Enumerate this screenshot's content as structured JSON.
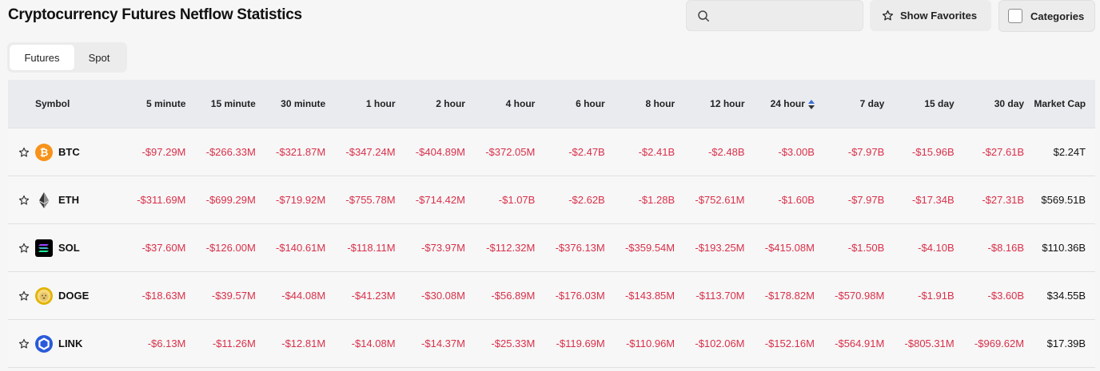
{
  "title": "Cryptocurrency Futures Netflow Statistics",
  "search": {
    "placeholder": "",
    "value": ""
  },
  "favorites_label": "Show Favorites",
  "categories_label": "Categories",
  "tabs": [
    {
      "label": "Futures",
      "active": true
    },
    {
      "label": "Spot",
      "active": false
    }
  ],
  "table": {
    "headers": [
      "Symbol",
      "5 minute",
      "15 minute",
      "30 minute",
      "1 hour",
      "2 hour",
      "4 hour",
      "6 hour",
      "8 hour",
      "12 hour",
      "24 hour",
      "7 day",
      "15 day",
      "30 day",
      "Market Cap"
    ],
    "sorted_column": "24 hour",
    "rows": [
      {
        "symbol": "BTC",
        "icon": "btc-icon",
        "values": [
          "-$97.29M",
          "-$266.33M",
          "-$321.87M",
          "-$347.24M",
          "-$404.89M",
          "-$372.05M",
          "-$2.47B",
          "-$2.41B",
          "-$2.48B",
          "-$3.00B",
          "-$7.97B",
          "-$15.96B",
          "-$27.61B"
        ],
        "market_cap": "$2.24T"
      },
      {
        "symbol": "ETH",
        "icon": "eth-icon",
        "values": [
          "-$311.69M",
          "-$699.29M",
          "-$719.92M",
          "-$755.78M",
          "-$714.42M",
          "-$1.07B",
          "-$2.62B",
          "-$1.28B",
          "-$752.61M",
          "-$1.60B",
          "-$7.97B",
          "-$17.34B",
          "-$27.31B"
        ],
        "market_cap": "$569.51B"
      },
      {
        "symbol": "SOL",
        "icon": "sol-icon",
        "values": [
          "-$37.60M",
          "-$126.00M",
          "-$140.61M",
          "-$118.11M",
          "-$73.97M",
          "-$112.32M",
          "-$376.13M",
          "-$359.54M",
          "-$193.25M",
          "-$415.08M",
          "-$1.50B",
          "-$4.10B",
          "-$8.16B"
        ],
        "market_cap": "$110.36B"
      },
      {
        "symbol": "DOGE",
        "icon": "doge-icon",
        "values": [
          "-$18.63M",
          "-$39.57M",
          "-$44.08M",
          "-$41.23M",
          "-$30.08M",
          "-$56.89M",
          "-$176.03M",
          "-$143.85M",
          "-$113.70M",
          "-$178.82M",
          "-$570.98M",
          "-$1.91B",
          "-$3.60B"
        ],
        "market_cap": "$34.55B"
      },
      {
        "symbol": "LINK",
        "icon": "link-icon",
        "values": [
          "-$6.13M",
          "-$11.26M",
          "-$12.81M",
          "-$14.08M",
          "-$14.37M",
          "-$25.33M",
          "-$119.69M",
          "-$110.96M",
          "-$102.06M",
          "-$152.16M",
          "-$564.91M",
          "-$805.31M",
          "-$969.62M"
        ],
        "market_cap": "$17.39B"
      }
    ]
  },
  "colors": {
    "negative": "#d9304a",
    "sort_active": "#3b6fd6",
    "btc": "#f7931a",
    "link": "#2a5ada"
  }
}
